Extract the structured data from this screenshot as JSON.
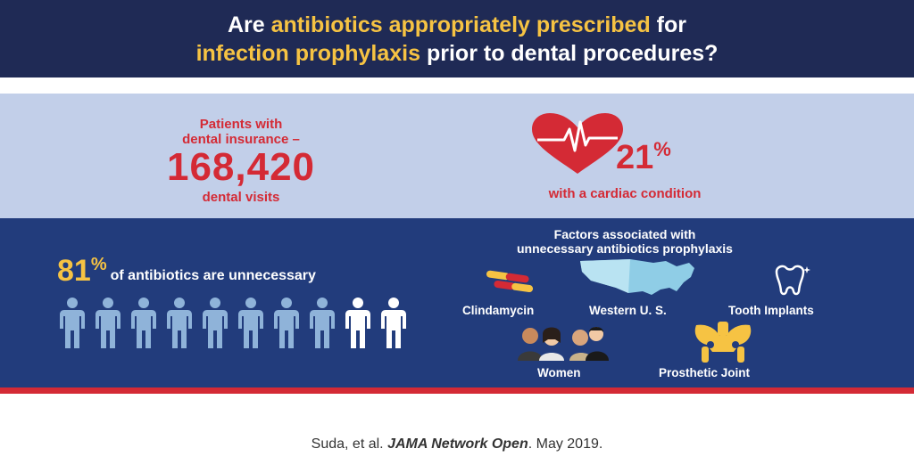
{
  "header": {
    "line1_part1": "Are ",
    "line1_highlight": "antibiotics appropriately prescribed",
    "line1_part2": " for",
    "line2_highlight": "infection prophylaxis",
    "line2_part2": " prior to dental procedures?"
  },
  "stats": {
    "patients_line1": "Patients with",
    "patients_line2": "dental insurance –",
    "visits_number": "168,420",
    "visits_label": "dental visits",
    "cardiac_number": "21",
    "cardiac_pct": "%",
    "cardiac_label": "with a cardiac condition"
  },
  "unnecessary": {
    "number": "81",
    "pct": "%",
    "label": "of antibiotics are unnecessary",
    "people_total": 10,
    "people_highlighted": 8
  },
  "factors": {
    "title_line1": "Factors associated with",
    "title_line2": "unnecessary antibiotics prophylaxis",
    "items": [
      {
        "label": "Clindamycin",
        "icon": "capsule-icon"
      },
      {
        "label": "Western U. S.",
        "icon": "us-map-icon"
      },
      {
        "label": "Tooth Implants",
        "icon": "tooth-icon"
      },
      {
        "label": "Women",
        "icon": "women-group-icon"
      },
      {
        "label": "Prosthetic Joint",
        "icon": "pelvis-joint-icon"
      }
    ]
  },
  "citation": {
    "authors": "Suda, et al. ",
    "journal": "JAMA Network Open",
    "date": ". May 2019."
  },
  "colors": {
    "navy": "#1f2a55",
    "blue_panel": "#223c7c",
    "light_panel": "#c2cfe9",
    "red": "#d42a35",
    "yellow": "#f6c343",
    "person_blue": "#8fb3d9",
    "person_white": "#ffffff"
  }
}
